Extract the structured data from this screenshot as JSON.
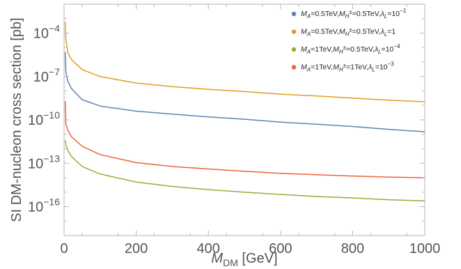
{
  "chart_data": {
    "type": "line",
    "title": "",
    "xlabel": "M_DM [GeV]",
    "xlabel_main": "M",
    "xlabel_sub": "DM",
    "xlabel_unit": " [GeV]",
    "ylabel": "SI DM-nucleon cross section [pb]",
    "xscale": "linear",
    "yscale": "log",
    "grid": false,
    "legend_position": "top-right",
    "xlim": [
      0,
      1000
    ],
    "ylim": [
      1e-18,
      0.01
    ],
    "xticks": [
      0,
      200,
      400,
      600,
      800,
      1000
    ],
    "xtick_labels": [
      "0",
      "200",
      "400",
      "600",
      "800",
      "1000"
    ],
    "yticks": [
      0.0001,
      1e-07,
      1e-10,
      1e-13,
      1e-16
    ],
    "ytick_exponents": [
      "−4",
      "−7",
      "−10",
      "−13",
      "−16"
    ],
    "ytick_base": "10",
    "series": [
      {
        "name": "M_A=0.5TeV, M_H±=0.5TeV, λ_L=10^-1",
        "legend": {
          "mA": "0.5TeV",
          "mH": "0.5TeV",
          "lam": "10",
          "lamExp": "−1"
        },
        "color": "#5e81b5",
        "x": [
          3,
          5,
          10,
          20,
          50,
          100,
          200,
          300,
          400,
          500,
          600,
          700,
          800,
          900,
          1000
        ],
        "y": [
          5e-06,
          2e-07,
          5e-08,
          1.5e-08,
          2.5e-09,
          9e-10,
          4e-10,
          2.5e-10,
          1.6e-10,
          1.1e-10,
          7e-11,
          5e-11,
          3.5e-11,
          2.2e-11,
          1.5e-11
        ]
      },
      {
        "name": "M_A=0.5TeV, M_H±=0.5TeV, λ_L=1",
        "legend": {
          "mA": "0.5TeV",
          "mH": "0.5TeV",
          "lam": "1",
          "lamExp": ""
        },
        "color": "#e19c24",
        "x": [
          3,
          5,
          10,
          20,
          50,
          100,
          200,
          300,
          400,
          500,
          600,
          700,
          800,
          900,
          1000
        ],
        "y": [
          0.0006,
          4e-05,
          5e-06,
          1.5e-06,
          3e-07,
          1e-07,
          3.5e-08,
          2e-08,
          1.3e-08,
          9e-09,
          6e-09,
          4.5e-09,
          3.2e-09,
          2.3e-09,
          1.8e-09
        ]
      },
      {
        "name": "M_A=1TeV, M_H±=0.5TeV, λ_L=10^-4",
        "legend": {
          "mA": "1TeV",
          "mH": "0.5TeV",
          "lam": "10",
          "lamExp": "−4"
        },
        "color": "#8fb032",
        "x": [
          3,
          5,
          10,
          20,
          50,
          100,
          200,
          300,
          400,
          500,
          600,
          700,
          800,
          900,
          1000
        ],
        "y": [
          4e-12,
          2e-12,
          8e-13,
          3e-13,
          6e-14,
          1.8e-14,
          5e-15,
          2.5e-15,
          1.5e-15,
          1e-15,
          7e-16,
          5e-16,
          4e-16,
          3e-16,
          2.5e-16
        ]
      },
      {
        "name": "M_A=1TeV, M_H±=1TeV, λ_L=10^-3",
        "legend": {
          "mA": "1TeV",
          "mH": "1TeV",
          "lam": "10",
          "lamExp": "−3"
        },
        "color": "#eb6235",
        "x": [
          3,
          5,
          10,
          20,
          50,
          100,
          200,
          300,
          400,
          500,
          600,
          700,
          800,
          900,
          1000
        ],
        "y": [
          2e-09,
          5e-11,
          2e-11,
          7e-12,
          1.5e-12,
          4e-13,
          1.1e-13,
          6e-14,
          4e-14,
          2.8e-14,
          2e-14,
          1.6e-14,
          1.3e-14,
          1.1e-14,
          1e-14
        ]
      }
    ]
  }
}
